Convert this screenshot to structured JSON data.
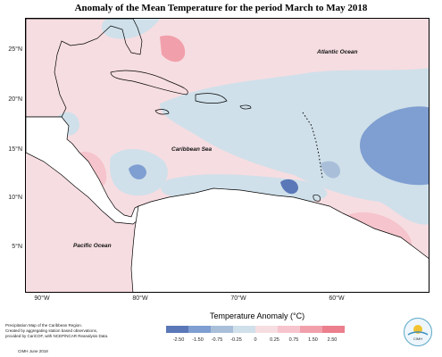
{
  "title": "Anomaly of the Mean Temperature for the period March to May 2018",
  "y_axis_labels": [
    "25°N",
    "20°N",
    "15°N",
    "10°N",
    "5°N"
  ],
  "x_axis_labels": [
    "90°W",
    "80°W",
    "70°W",
    "60°W"
  ],
  "ocean_labels": {
    "atlantic": "Atlantic Ocean",
    "caribbean": "Caribbean Sea",
    "pacific": "Pacific Ocean"
  },
  "legend": {
    "title": "Temperature Anomaly (°C)",
    "ticks": [
      "-2.50",
      "-1.50",
      "-0.75",
      "-0.25",
      "0",
      "0.25",
      "0.75",
      "1.50",
      "2.50"
    ],
    "colors": [
      "#5a77b8",
      "#7f9ed1",
      "#a9bfd9",
      "#cfe0ea",
      "#f6dde1",
      "#f6c4cc",
      "#f1a0ab",
      "#ec7f8d"
    ]
  },
  "footnote": {
    "line1": "Precipitation Map of the Caribbean Region.",
    "line2": "Created by aggregating station based observations,",
    "line3": "provided by CariCOF, with NCEP/NCAR Reanalysis Data.",
    "credit": "CIMH June 2018"
  },
  "logo": {
    "text": "CIMH"
  }
}
